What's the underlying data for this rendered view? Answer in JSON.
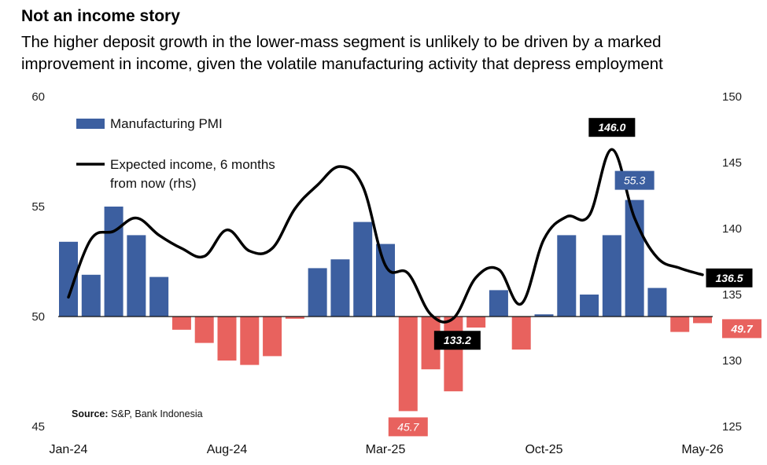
{
  "title": "Not an income story",
  "subtitle": "The higher deposit growth in the lower-mass segment is unlikely to be driven by a marked improvement in income, given the volatile manufacturing activity that depress employment",
  "source_bold": "Source:",
  "source_text": " S&P, Bank Indonesia",
  "colors": {
    "bar_positive": "#3c5fa0",
    "bar_negative": "#e8625e",
    "line": "#000000",
    "label_dark": "#000000"
  },
  "chart_data": {
    "type": "bar+line",
    "x_tick_labels": [
      "Jan-24",
      "Aug-24",
      "Mar-25",
      "Oct-25",
      "May-26"
    ],
    "y_left": {
      "lim": [
        45,
        60
      ],
      "ticks": [
        "45",
        "50",
        "55",
        "60"
      ]
    },
    "y_right": {
      "lim": [
        125,
        150
      ],
      "ticks": [
        "125",
        "130",
        "135",
        "140",
        "145",
        "150"
      ]
    },
    "series": [
      {
        "name": "Manufacturing PMI",
        "type": "bar",
        "axis": "left",
        "values": [
          53.4,
          51.9,
          55.0,
          53.7,
          51.8,
          49.4,
          48.8,
          48.0,
          47.8,
          48.2,
          49.9,
          52.2,
          52.6,
          54.3,
          53.3,
          45.7,
          47.6,
          46.6,
          49.5,
          51.2,
          48.5,
          50.1,
          53.7,
          51.0,
          53.7,
          55.3,
          51.3,
          49.3,
          49.7
        ]
      },
      {
        "name": "Expected income, 6 months from now (rhs)",
        "type": "line",
        "axis": "right",
        "values": [
          134.8,
          139.2,
          139.8,
          140.8,
          139.5,
          138.5,
          137.9,
          139.9,
          138.3,
          138.5,
          141.5,
          143.3,
          144.7,
          143.2,
          137.2,
          136.6,
          133.5,
          133.2,
          136.3,
          136.9,
          134.3,
          139.2,
          140.9,
          141.0,
          146.0,
          140.8,
          137.8,
          137.0,
          136.5
        ]
      }
    ],
    "annotations": [
      {
        "series": 1,
        "index": 24,
        "text": "146.0"
      },
      {
        "series": 1,
        "index": 17,
        "text": "133.2"
      },
      {
        "series": 1,
        "index": 28,
        "text": "136.5"
      },
      {
        "series": 0,
        "index": 25,
        "text": "55.3"
      },
      {
        "series": 0,
        "index": 15,
        "text": "45.7"
      },
      {
        "series": 0,
        "index": 28,
        "text": "49.7"
      }
    ]
  }
}
